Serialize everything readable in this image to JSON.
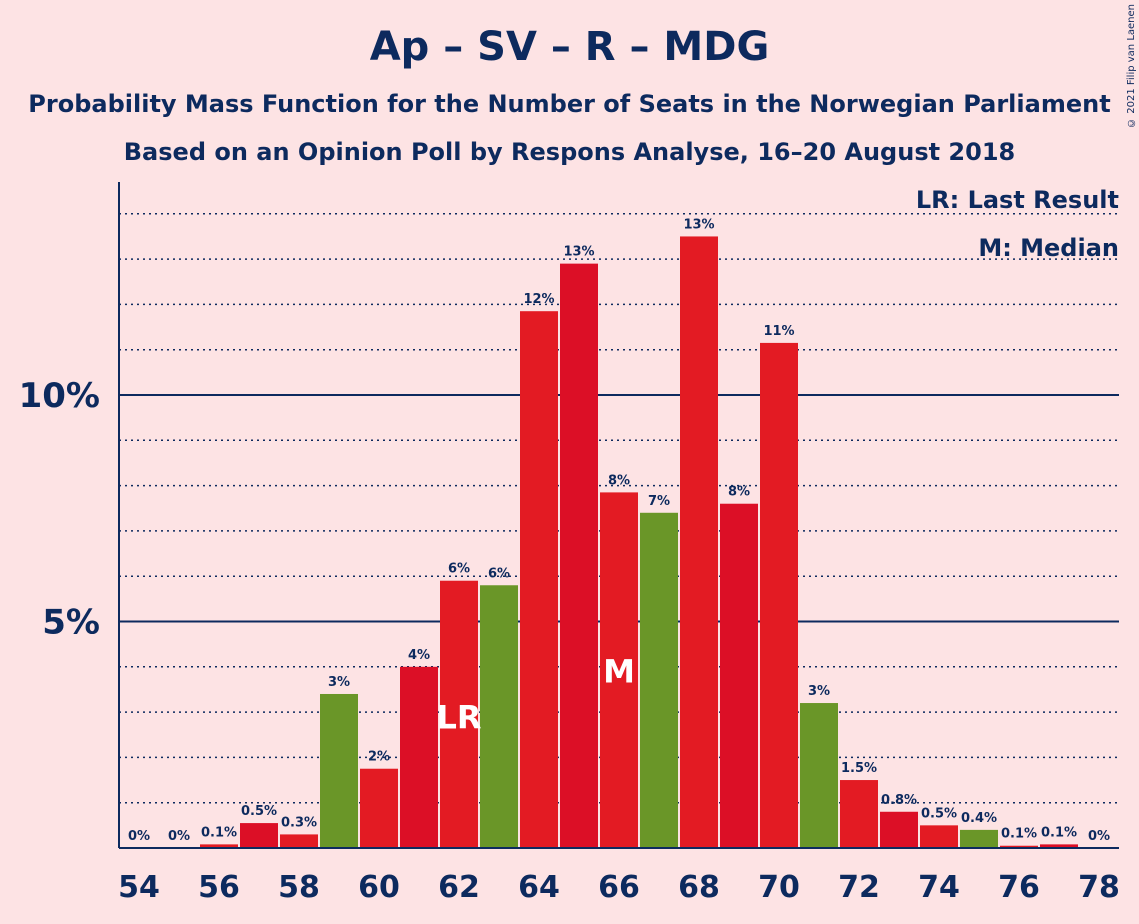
{
  "header": {
    "title": "Ap – SV – R – MDG",
    "subtitle1": "Probability Mass Function for the Number of Seats in the Norwegian Parliament",
    "subtitle2": "Based on an Opinion Poll by Respons Analyse, 16–20 August 2018",
    "copyright": "© 2021 Filip van Laenen"
  },
  "legend": {
    "last_result": "LR: Last Result",
    "median": "M: Median"
  },
  "colors": {
    "background": "#fde3e4",
    "red_a": "#e31b23",
    "red_b": "#dc0f26",
    "green": "#6a9628",
    "text": "#0d2a5e"
  },
  "chart_data": {
    "type": "bar",
    "categories": [
      54,
      55,
      56,
      57,
      58,
      59,
      60,
      61,
      62,
      63,
      64,
      65,
      66,
      67,
      68,
      69,
      70,
      71,
      72,
      73,
      74,
      75,
      76,
      77,
      78
    ],
    "values": [
      0,
      0,
      0.08,
      0.55,
      0.3,
      3.4,
      1.75,
      4.0,
      5.9,
      5.8,
      11.85,
      12.9,
      7.85,
      7.4,
      13.5,
      7.6,
      11.15,
      3.2,
      1.5,
      0.8,
      0.5,
      0.4,
      0.05,
      0.08,
      0
    ],
    "value_labels": [
      "0%",
      "0%",
      "0.1%",
      "0.5%",
      "0.3%",
      "3%",
      "2%",
      "4%",
      "6%",
      "6%",
      "12%",
      "13%",
      "8%",
      "7%",
      "13%",
      "8%",
      "11%",
      "3%",
      "1.5%",
      "0.8%",
      "0.5%",
      "0.4%",
      "0.1%",
      "0.1%",
      "0%"
    ],
    "bar_colors": [
      "red_a",
      "red_a",
      "red_a",
      "red_b",
      "red_a",
      "green",
      "red_a",
      "red_b",
      "red_a",
      "green",
      "red_a",
      "red_b",
      "red_a",
      "green",
      "red_a",
      "red_b",
      "red_a",
      "green",
      "red_a",
      "red_b",
      "red_a",
      "green",
      "red_a",
      "red_b",
      "red_a"
    ],
    "x_tick_labels": [
      "54",
      "56",
      "58",
      "60",
      "62",
      "64",
      "66",
      "68",
      "70",
      "72",
      "74",
      "76",
      "78"
    ],
    "y_ticks": [
      {
        "value": 5,
        "label": "5%"
      },
      {
        "value": 10,
        "label": "10%"
      }
    ],
    "ylim": [
      0,
      14.5
    ],
    "grid": "dotted every 1%, solid at 5% and 10%",
    "markers": [
      {
        "seat": 62,
        "label": "LR"
      },
      {
        "seat": 66,
        "label": "M"
      }
    ],
    "xlabel": "",
    "ylabel": ""
  }
}
